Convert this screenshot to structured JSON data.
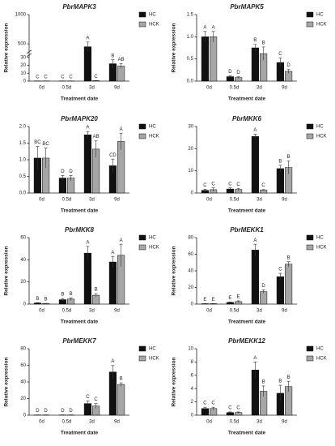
{
  "chart_data": [
    {
      "type": "bar",
      "title": "PbrMAPK3",
      "ylabel": "Relative expression",
      "xlabel": "Treatment date",
      "categories": [
        "0d",
        "0.5d",
        "3d",
        "9d"
      ],
      "ylim": [
        0,
        1000
      ],
      "ybreak": [
        32,
        350
      ],
      "yticks": [
        0,
        10,
        20,
        30,
        500,
        1000
      ],
      "series": [
        {
          "name": "HC",
          "color": "#111111",
          "values": [
            0.2,
            0.2,
            450,
            22
          ],
          "errors": [
            0.1,
            0.1,
            80,
            5
          ],
          "letters": [
            "C",
            "C",
            "A",
            "B"
          ]
        },
        {
          "name": "HCK",
          "color": "#a6a6a6",
          "values": [
            0.2,
            0.2,
            0.5,
            19
          ],
          "errors": [
            0.1,
            0.1,
            0.2,
            3
          ],
          "letters": [
            "C",
            "C",
            "C",
            "AB"
          ]
        }
      ]
    },
    {
      "type": "bar",
      "title": "PbrMAPK5",
      "ylabel": "Relative expression",
      "xlabel": "Treatment date",
      "categories": [
        "0d",
        "0.5d",
        "3d",
        "9d"
      ],
      "ylim": [
        0,
        1.5
      ],
      "yticks": [
        {
          "value": 0,
          "label": "0.0"
        },
        0.5,
        {
          "value": 1,
          "label": "1.0"
        },
        1.5
      ],
      "series": [
        {
          "name": "HC",
          "color": "#111111",
          "values": [
            1.0,
            0.1,
            0.75,
            0.42
          ],
          "errors": [
            0.12,
            0.02,
            0.08,
            0.1
          ],
          "letters": [
            "A",
            "D",
            "B",
            "C"
          ]
        },
        {
          "name": "HCK",
          "color": "#a6a6a6",
          "values": [
            1.0,
            0.08,
            0.62,
            0.22
          ],
          "errors": [
            0.12,
            0.02,
            0.15,
            0.05
          ],
          "letters": [
            "A",
            "D",
            "B",
            "D"
          ]
        }
      ]
    },
    {
      "type": "bar",
      "title": "PbrMAPK20",
      "xlabel": "Treatment date",
      "categories": [
        "0d",
        "0.5d",
        "3d",
        "9d"
      ],
      "ylim": [
        0,
        2
      ],
      "yticks": [
        {
          "value": 0,
          "label": "0.0"
        },
        0.5,
        {
          "value": 1,
          "label": "1.0"
        },
        1.5,
        {
          "value": 2,
          "label": "2.0"
        }
      ],
      "series": [
        {
          "name": "HC",
          "color": "#111111",
          "values": [
            1.05,
            0.45,
            1.75,
            0.82
          ],
          "errors": [
            0.35,
            0.08,
            0.1,
            0.2
          ],
          "letters": [
            "BC",
            "D",
            "A",
            "CD"
          ]
        },
        {
          "name": "HCK",
          "color": "#a6a6a6",
          "values": [
            1.05,
            0.45,
            1.32,
            1.55
          ],
          "errors": [
            0.3,
            0.08,
            0.25,
            0.25
          ],
          "letters": [
            "BC",
            "D",
            "AB",
            "A"
          ]
        }
      ]
    },
    {
      "type": "bar",
      "title": "PbrMKK6",
      "xlabel": "Treatment date",
      "categories": [
        "0d",
        "0.5d",
        "3d",
        "9d"
      ],
      "ylim": [
        0,
        30
      ],
      "yticks": [
        0,
        10,
        20,
        30
      ],
      "series": [
        {
          "name": "HC",
          "color": "#111111",
          "values": [
            1.2,
            1.8,
            25.5,
            11
          ],
          "errors": [
            0.5,
            0.5,
            1,
            1.5
          ],
          "letters": [
            "C",
            "C",
            "A",
            "B"
          ]
        },
        {
          "name": "HCK",
          "color": "#a6a6a6",
          "values": [
            1.5,
            1.6,
            1.3,
            11.5
          ],
          "errors": [
            0.8,
            0.5,
            0.3,
            3
          ],
          "letters": [
            "C",
            "C",
            "C",
            "B"
          ]
        }
      ]
    },
    {
      "type": "bar",
      "title": "PbrMKK8",
      "ylabel": "Relative expression",
      "xlabel": "Treatment date",
      "categories": [
        "0d",
        "0.5d",
        "3d",
        "9d"
      ],
      "ylim": [
        0,
        60
      ],
      "yticks": [
        0,
        20,
        40,
        60
      ],
      "series": [
        {
          "name": "HC",
          "color": "#111111",
          "values": [
            1,
            4,
            46,
            38
          ],
          "errors": [
            0.3,
            1,
            6,
            5
          ],
          "letters": [
            "B",
            "B",
            "A",
            "A"
          ]
        },
        {
          "name": "HCK",
          "color": "#a6a6a6",
          "values": [
            0.5,
            4.5,
            8,
            44
          ],
          "errors": [
            0.2,
            1,
            1.5,
            10
          ],
          "letters": [
            "B",
            "B",
            "B",
            "A"
          ]
        }
      ]
    },
    {
      "type": "bar",
      "title": "PbrMEKK1",
      "ylabel": "Relative expression",
      "xlabel": "Treatment date",
      "categories": [
        "0d",
        "0.5d",
        "3d",
        "9d"
      ],
      "ylim": [
        0,
        80
      ],
      "yticks": [
        0,
        20,
        40,
        60,
        80
      ],
      "series": [
        {
          "name": "HC",
          "color": "#111111",
          "values": [
            0.5,
            2,
            65,
            33
          ],
          "errors": [
            0.2,
            0.5,
            7,
            4
          ],
          "letters": [
            "E",
            "E",
            "A",
            "C"
          ]
        },
        {
          "name": "HCK",
          "color": "#a6a6a6",
          "values": [
            0.5,
            3,
            15,
            48
          ],
          "errors": [
            0.2,
            1,
            2,
            3
          ],
          "letters": [
            "E",
            "E",
            "D",
            "B"
          ]
        }
      ]
    },
    {
      "type": "bar",
      "title": "PbrMEKK7",
      "ylabel": "Relative expression",
      "xlabel": "Treatment date",
      "categories": [
        "0d",
        "0.5d",
        "3d",
        "9d"
      ],
      "ylim": [
        0,
        80
      ],
      "yticks": [
        0,
        20,
        40,
        60,
        80
      ],
      "series": [
        {
          "name": "HC",
          "color": "#111111",
          "values": [
            0.3,
            0.3,
            14,
            52
          ],
          "errors": [
            0.1,
            0.1,
            3,
            8
          ],
          "letters": [
            "D",
            "D",
            "C",
            "A"
          ]
        },
        {
          "name": "HCK",
          "color": "#a6a6a6",
          "values": [
            0.3,
            0.3,
            11,
            37
          ],
          "errors": [
            0.1,
            0.1,
            3,
            2
          ],
          "letters": [
            "D",
            "D",
            "C",
            "B"
          ]
        }
      ]
    },
    {
      "type": "bar",
      "title": "PbrMEKK12",
      "ylabel": "Relative expression",
      "xlabel": "Treatment date",
      "categories": [
        "0d",
        "0.5d",
        "3d",
        "9d"
      ],
      "ylim": [
        0,
        10
      ],
      "yticks": [
        0,
        2,
        4,
        6,
        8,
        10
      ],
      "series": [
        {
          "name": "HC",
          "color": "#111111",
          "values": [
            1.0,
            0.4,
            6.8,
            3.3
          ],
          "errors": [
            0.2,
            0.1,
            1.2,
            1.2
          ],
          "letters": [
            "C",
            "C",
            "A",
            "B"
          ]
        },
        {
          "name": "HCK",
          "color": "#a6a6a6",
          "values": [
            1.0,
            0.4,
            3.6,
            4.3
          ],
          "errors": [
            0.2,
            0.1,
            0.8,
            0.8
          ],
          "letters": [
            "C",
            "C",
            "B",
            "B"
          ]
        }
      ]
    }
  ]
}
